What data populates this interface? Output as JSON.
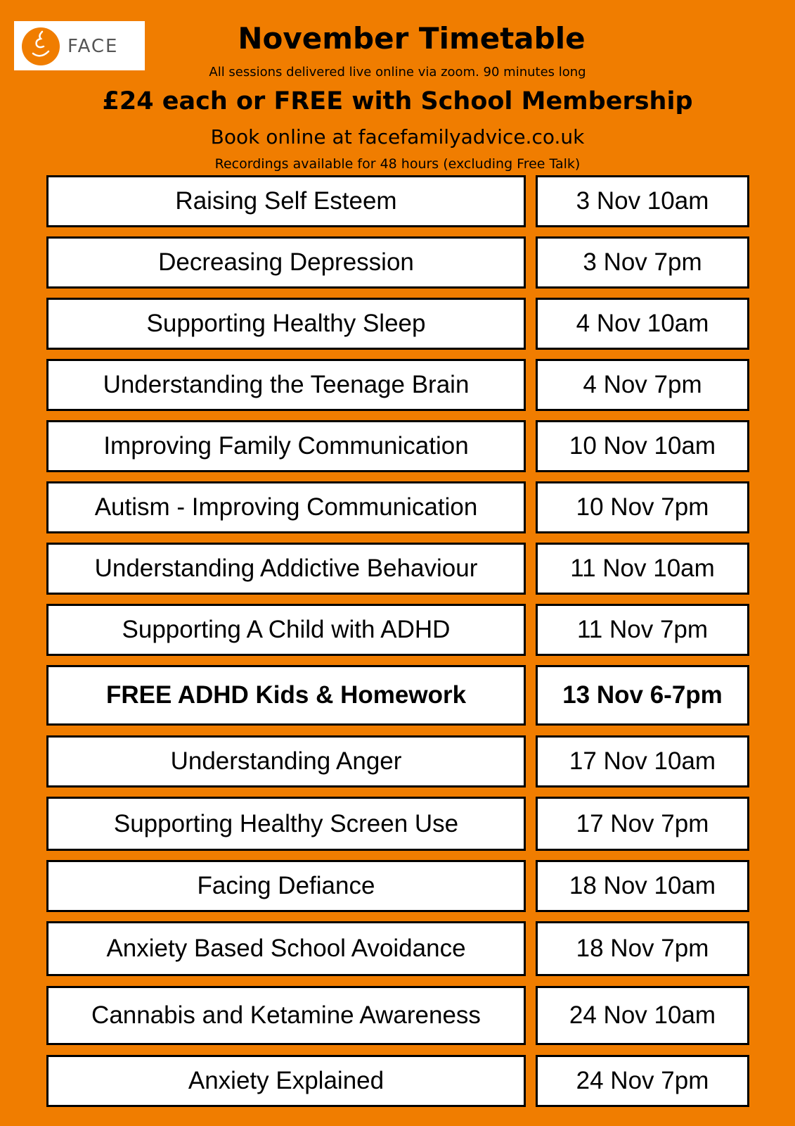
{
  "logo": {
    "text": "FACE",
    "color": "#f07d00"
  },
  "header": {
    "title": "November Timetable",
    "subtitle": "All sessions delivered live online via zoom. 90 minutes long",
    "price": "£24 each or FREE with School Membership",
    "booking": "Book online at facefamilyadvice.co.uk",
    "recordings": "Recordings available for 48 hours (excluding Free Talk)"
  },
  "colors": {
    "background": "#f07d00",
    "cell": "#ffffff",
    "border": "#000000"
  },
  "sessions": [
    {
      "title": "Raising Self Esteem",
      "when": "3 Nov 10am"
    },
    {
      "title": "Decreasing Depression",
      "when": "3 Nov 7pm"
    },
    {
      "title": "Supporting Healthy Sleep",
      "when": "4 Nov 10am"
    },
    {
      "title": "Understanding the Teenage Brain",
      "when": "4 Nov 7pm"
    },
    {
      "title": "Improving Family Communication",
      "when": "10 Nov 10am"
    },
    {
      "title": "Autism - Improving Communication",
      "when": "10 Nov 7pm"
    },
    {
      "title": "Understanding Addictive Behaviour",
      "when": "11 Nov 10am"
    },
    {
      "title": "Supporting A Child with ADHD",
      "when": "11 Nov 7pm"
    },
    {
      "title": "FREE ADHD Kids & Homework",
      "when": "13 Nov 6-7pm",
      "highlight": true
    },
    {
      "title": "Understanding Anger",
      "when": "17 Nov 10am"
    },
    {
      "title": "Supporting Healthy Screen Use",
      "when": "17 Nov 7pm"
    },
    {
      "title": "Facing Defiance",
      "when": "18 Nov 10am"
    },
    {
      "title": "Anxiety Based School Avoidance",
      "when": "18 Nov 7pm"
    },
    {
      "title": "Cannabis and Ketamine Awareness",
      "when": "24 Nov 10am"
    },
    {
      "title": "Anxiety Explained",
      "when": "24 Nov 7pm"
    }
  ]
}
